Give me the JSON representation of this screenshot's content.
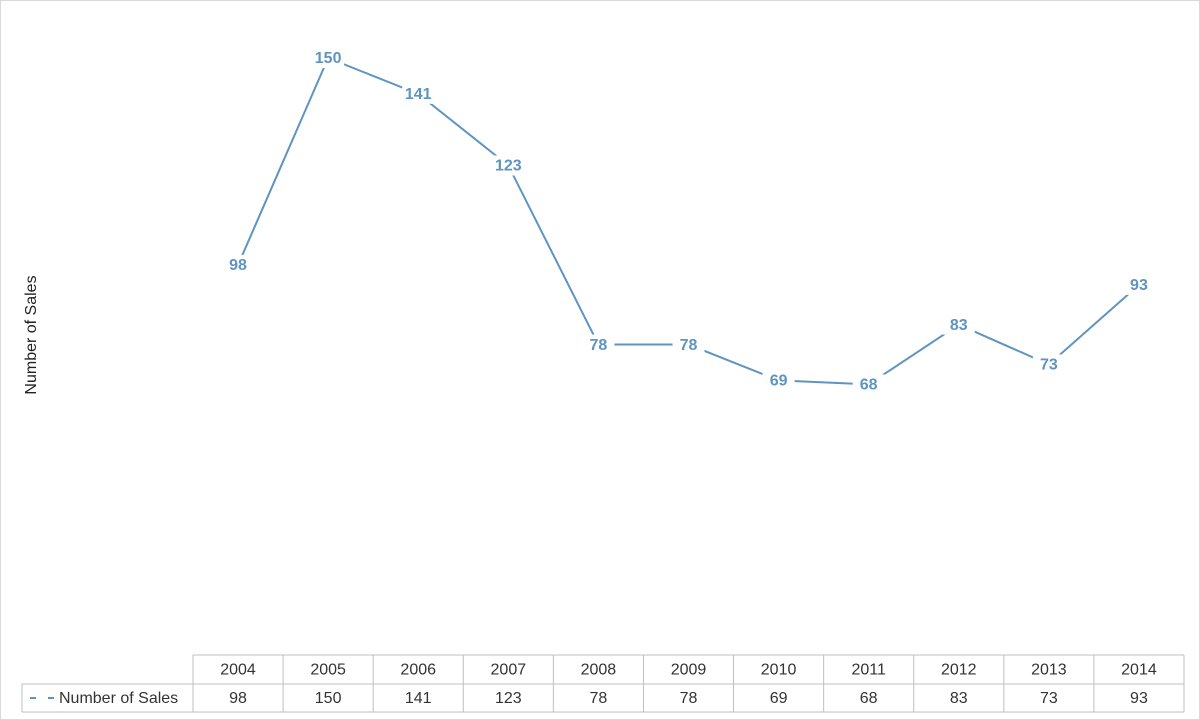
{
  "chart_data": {
    "type": "line",
    "y_label": "Number of Sales",
    "categories": [
      "2004",
      "2005",
      "2006",
      "2007",
      "2008",
      "2009",
      "2010",
      "2011",
      "2012",
      "2013",
      "2014"
    ],
    "series": [
      {
        "name": "Number of Sales",
        "color": "#5f94c0",
        "values": [
          98,
          150,
          141,
          123,
          78,
          78,
          69,
          68,
          83,
          73,
          93
        ]
      }
    ],
    "data_table": true
  }
}
